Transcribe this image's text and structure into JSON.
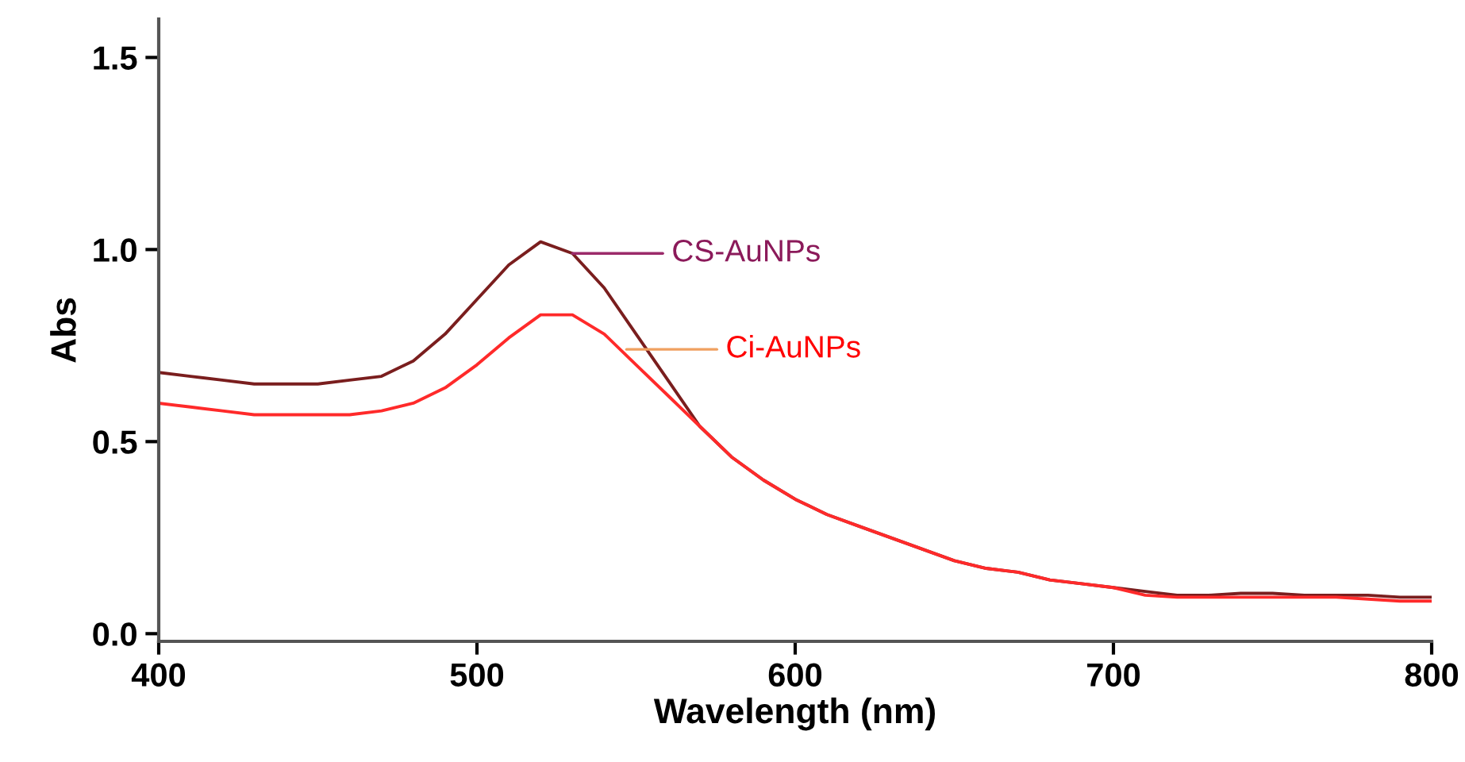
{
  "chart_data": {
    "type": "line",
    "xlabel": "Wavelength (nm)",
    "ylabel": "Abs",
    "x": [
      400,
      410,
      420,
      430,
      440,
      450,
      460,
      470,
      480,
      490,
      500,
      510,
      520,
      530,
      540,
      550,
      560,
      570,
      580,
      590,
      600,
      610,
      620,
      630,
      640,
      650,
      660,
      670,
      680,
      690,
      700,
      710,
      720,
      730,
      740,
      750,
      760,
      770,
      780,
      790,
      800
    ],
    "series": [
      {
        "color": "#7a1e1e",
        "values": [
          0.68,
          0.67,
          0.66,
          0.65,
          0.65,
          0.65,
          0.66,
          0.67,
          0.71,
          0.78,
          0.87,
          0.96,
          1.02,
          0.99,
          0.9,
          0.78,
          0.66,
          0.54,
          0.46,
          0.4,
          0.35,
          0.31,
          0.28,
          0.25,
          0.22,
          0.19,
          0.17,
          0.16,
          0.14,
          0.13,
          0.12,
          0.11,
          0.1,
          0.1,
          0.105,
          0.105,
          0.1,
          0.1,
          0.1,
          0.095,
          0.095
        ]
      },
      {
        "color": "#ff2a2a",
        "values": [
          0.6,
          0.59,
          0.58,
          0.57,
          0.57,
          0.57,
          0.57,
          0.58,
          0.6,
          0.64,
          0.7,
          0.77,
          0.83,
          0.83,
          0.78,
          0.7,
          0.62,
          0.54,
          0.46,
          0.4,
          0.35,
          0.31,
          0.28,
          0.25,
          0.22,
          0.19,
          0.17,
          0.16,
          0.14,
          0.13,
          0.12,
          0.1,
          0.095,
          0.095,
          0.095,
          0.095,
          0.095,
          0.095,
          0.09,
          0.085,
          0.085
        ]
      }
    ],
    "annotations": [
      {
        "text": "CS-AuNPs",
        "x": 530,
        "y": 0.99
      },
      {
        "text": "Ci-AuNPs",
        "x": 547,
        "y": 0.74
      }
    ],
    "xlim": [
      400,
      800
    ],
    "xticks": [
      400,
      500,
      600,
      700,
      800
    ],
    "ylim": [
      -0.02,
      1.6
    ],
    "yticks": [
      {
        "value": 0,
        "label": "0.0"
      },
      {
        "value": 0.5,
        "label": "0.5"
      },
      {
        "value": 1,
        "label": "1.0"
      },
      {
        "value": 1.5,
        "label": "1.5"
      }
    ],
    "grid": false,
    "legend": false
  }
}
